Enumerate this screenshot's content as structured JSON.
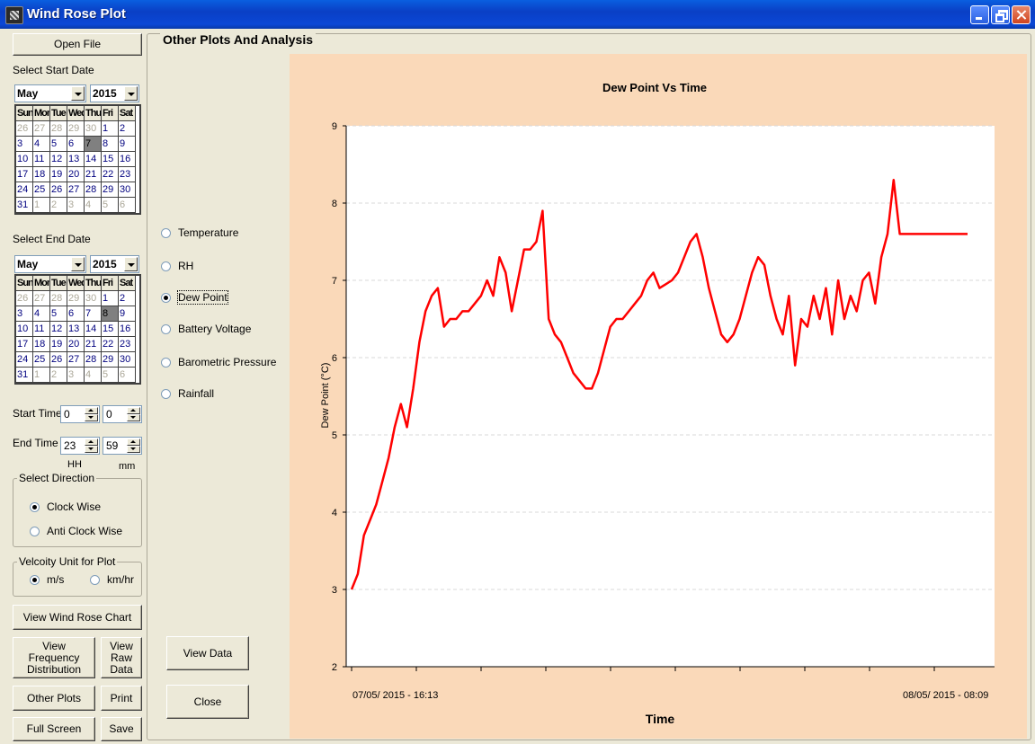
{
  "window": {
    "title": "Wind Rose Plot"
  },
  "left_panel": {
    "open_file": "Open File",
    "start_date_label": "Select Start Date",
    "end_date_label": "Select End Date",
    "start_calendar": {
      "month": "May",
      "year": "2015",
      "selected": "7"
    },
    "end_calendar": {
      "month": "May",
      "year": "2015",
      "selected": "8"
    },
    "days_of_week": [
      "Sun",
      "Mon",
      "Tue",
      "Wed",
      "Thu",
      "Fri",
      "Sat"
    ],
    "calendar_days": [
      [
        "26",
        "27",
        "28",
        "29",
        "30",
        "1",
        "2"
      ],
      [
        "3",
        "4",
        "5",
        "6",
        "7",
        "8",
        "9"
      ],
      [
        "10",
        "11",
        "12",
        "13",
        "14",
        "15",
        "16"
      ],
      [
        "17",
        "18",
        "19",
        "20",
        "21",
        "22",
        "23"
      ],
      [
        "24",
        "25",
        "26",
        "27",
        "28",
        "29",
        "30"
      ],
      [
        "31",
        "1",
        "2",
        "3",
        "4",
        "5",
        "6"
      ]
    ],
    "start_time_label": "Start Time",
    "start_hh": "0",
    "start_mm": "0",
    "end_time_label": "End Time",
    "end_hh": "23",
    "end_mm": "59",
    "hh_label": "HH",
    "mm_label": "mm",
    "direction_legend": "Select Direction",
    "clockwise": "Clock Wise",
    "anticlockwise": "Anti Clock Wise",
    "velocity_legend": "Velcoity Unit for Plot",
    "unit_ms": "m/s",
    "unit_kmhr": "km/hr",
    "view_wind_rose": "View Wind Rose Chart",
    "view_freq": "View Frequency Distribution",
    "view_raw": "View Raw Data",
    "other_plots": "Other Plots",
    "print": "Print",
    "full_screen": "Full Screen",
    "save": "Save"
  },
  "other_panel": {
    "legend": "Other Plots And Analysis",
    "options": [
      "Temperature",
      "RH",
      "Dew Point",
      "Battery Voltage",
      "Barometric Pressure",
      "Rainfall"
    ],
    "selected_option": "Dew Point",
    "view_data": "View Data",
    "close": "Close"
  },
  "chart_data": {
    "type": "line",
    "title": "Dew Point Vs Time",
    "xlabel": "Time",
    "ylabel": "Dew  Point (°C)",
    "ylim": [
      2,
      9
    ],
    "yticks": [
      "2",
      "3",
      "4",
      "5",
      "6",
      "7",
      "8",
      "9"
    ],
    "x_start_label": "07/05/ 2015 - 16:13",
    "x_end_label": "08/05/ 2015 - 08:09",
    "grid": "horizontal dashed",
    "series": [
      {
        "color": "#ff0000",
        "x_fraction": [
          0.0,
          0.01,
          0.02,
          0.03,
          0.04,
          0.05,
          0.06,
          0.07,
          0.08,
          0.09,
          0.1,
          0.11,
          0.12,
          0.13,
          0.14,
          0.15,
          0.16,
          0.17,
          0.18,
          0.19,
          0.2,
          0.21,
          0.22,
          0.23,
          0.24,
          0.25,
          0.26,
          0.27,
          0.28,
          0.29,
          0.3,
          0.31,
          0.32,
          0.33,
          0.34,
          0.35,
          0.36,
          0.37,
          0.38,
          0.39,
          0.4,
          0.41,
          0.42,
          0.43,
          0.44,
          0.45,
          0.46,
          0.47,
          0.48,
          0.49,
          0.5,
          0.51,
          0.52,
          0.53,
          0.54,
          0.55,
          0.56,
          0.57,
          0.58,
          0.59,
          0.6,
          0.61,
          0.62,
          0.63,
          0.64,
          0.65,
          0.66,
          0.67,
          0.68,
          0.69,
          0.7,
          0.71,
          0.72,
          0.73,
          0.74,
          0.75,
          0.76,
          0.77,
          0.78,
          0.79,
          0.8,
          0.81,
          0.82,
          0.83,
          0.84,
          0.85,
          0.86,
          0.87,
          0.88,
          0.89,
          0.9,
          0.91,
          0.92,
          0.93,
          0.94,
          0.95,
          0.96,
          0.97,
          0.98,
          0.99,
          1.0
        ],
        "values": [
          3.0,
          3.2,
          3.7,
          3.9,
          4.1,
          4.4,
          4.7,
          5.1,
          5.4,
          5.1,
          5.6,
          6.2,
          6.6,
          6.8,
          6.9,
          6.4,
          6.5,
          6.5,
          6.6,
          6.6,
          6.7,
          6.8,
          7.0,
          6.8,
          7.3,
          7.1,
          6.6,
          7.0,
          7.4,
          7.4,
          7.5,
          7.9,
          6.5,
          6.3,
          6.2,
          6.0,
          5.8,
          5.7,
          5.6,
          5.6,
          5.8,
          6.1,
          6.4,
          6.5,
          6.5,
          6.6,
          6.7,
          6.8,
          7.0,
          7.1,
          6.9,
          6.95,
          7.0,
          7.1,
          7.3,
          7.5,
          7.6,
          7.3,
          6.9,
          6.6,
          6.3,
          6.2,
          6.3,
          6.5,
          6.8,
          7.1,
          7.3,
          7.2,
          6.8,
          6.5,
          6.3,
          6.8,
          5.9,
          6.5,
          6.4,
          6.8,
          6.5,
          6.9,
          6.3,
          7.0,
          6.5,
          6.8,
          6.6,
          7.0,
          7.1,
          6.7,
          7.3,
          7.6,
          8.3,
          7.6,
          7.6,
          7.6,
          7.6,
          7.6,
          7.6,
          7.6,
          7.6,
          7.6,
          7.6,
          7.6,
          7.6
        ]
      }
    ]
  }
}
